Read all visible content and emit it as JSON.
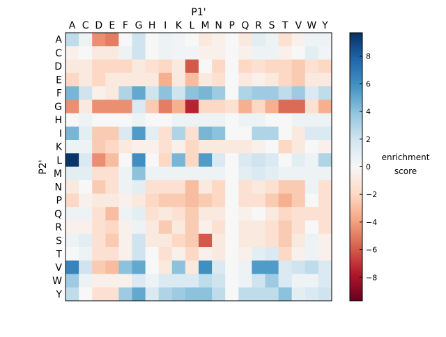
{
  "chart_data": {
    "type": "heatmap",
    "xlabel": "P1'",
    "ylabel": "P2'",
    "x_categories": [
      "A",
      "C",
      "D",
      "E",
      "F",
      "G",
      "H",
      "I",
      "K",
      "L",
      "M",
      "N",
      "P",
      "Q",
      "R",
      "S",
      "T",
      "V",
      "W",
      "Y"
    ],
    "y_categories": [
      "A",
      "C",
      "D",
      "E",
      "F",
      "G",
      "H",
      "I",
      "K",
      "L",
      "M",
      "N",
      "P",
      "Q",
      "R",
      "S",
      "T",
      "V",
      "W",
      "Y"
    ],
    "colorbar": {
      "label_line1": "enrichment",
      "label_line2": "score",
      "min": -9.7,
      "max": 9.7,
      "ticks": [
        8,
        6,
        4,
        2,
        0,
        -2,
        -4,
        -6,
        -8
      ],
      "tick_labels": [
        "8",
        "6",
        "4",
        "2",
        "0",
        "−2",
        "−4",
        "−6",
        "−8"
      ],
      "colormap": "RdBu"
    },
    "values": [
      [
        2.5,
        0.5,
        -4.5,
        -5,
        0,
        2,
        0,
        0.5,
        0.3,
        0,
        -1,
        -0.5,
        0,
        -1,
        1,
        0.5,
        -1.5,
        -0.5,
        0.5,
        0.5
      ],
      [
        -0.5,
        0,
        -1,
        -1,
        0.5,
        2,
        0,
        0.5,
        0.3,
        0.3,
        -0.5,
        -0.5,
        0,
        -0.5,
        0.5,
        0.5,
        -0.5,
        0,
        1,
        0.3
      ],
      [
        -1,
        -1,
        -2,
        -2,
        -2,
        -1,
        -1.5,
        -2,
        -1,
        -6,
        0,
        -2,
        0,
        -2,
        -1.5,
        -2,
        -2,
        -2.5,
        -1.5,
        -2
      ],
      [
        -2,
        -1,
        -2,
        -1,
        -1,
        -1,
        -1,
        -3.5,
        -1,
        -3,
        -1,
        -1.5,
        0,
        -1,
        -0.5,
        -1,
        -2,
        -2.5,
        -1,
        -1
      ],
      [
        4.5,
        2,
        -0.5,
        -1,
        3,
        5,
        2,
        4,
        2,
        4,
        4.5,
        3.5,
        0,
        3,
        3.5,
        3.5,
        2.5,
        3.5,
        1.5,
        2.5
      ],
      [
        -4.5,
        -1,
        -4.5,
        -4.5,
        -4.5,
        1.5,
        -2.5,
        -5,
        -3.5,
        -7.5,
        -2,
        -2,
        -1.5,
        -3.5,
        -2,
        -3.5,
        -5.5,
        -5.5,
        -1.5,
        -3.5
      ],
      [
        0,
        0.5,
        0,
        0,
        0,
        0.5,
        0,
        0,
        0.5,
        0.5,
        0.5,
        0.5,
        0,
        0.5,
        0.5,
        0,
        0,
        0.5,
        0.5,
        0.5
      ],
      [
        4.5,
        1,
        -2.5,
        -2.5,
        1.5,
        5.5,
        1,
        -1.5,
        3,
        -1.5,
        4.5,
        4,
        0,
        0,
        3,
        3,
        0,
        -1,
        1.5,
        1.5
      ],
      [
        0.5,
        0.5,
        -2.5,
        -2,
        -1,
        -0.5,
        -0.5,
        -1.5,
        -0.5,
        -2,
        -1,
        -1,
        -1,
        -1,
        -0.5,
        0,
        -2,
        -1,
        0,
        -0.5
      ],
      [
        9.5,
        1.5,
        -4.5,
        -3,
        0,
        6,
        0,
        -2,
        4.5,
        -2,
        5.5,
        1.5,
        0,
        1.5,
        2,
        1.5,
        0,
        1,
        0.5,
        3
      ],
      [
        1,
        1,
        -1.5,
        -1.5,
        0.5,
        4,
        0.5,
        0.5,
        0.5,
        0.5,
        0.5,
        0.5,
        0,
        1,
        1.5,
        1,
        0.5,
        0.5,
        0.5,
        0.5
      ],
      [
        -1,
        0,
        -2.5,
        -1.5,
        0.5,
        1,
        -1.5,
        -1.5,
        -1.5,
        -3,
        -1,
        -2,
        0,
        -1.5,
        -1,
        -1.5,
        -2.5,
        -2.5,
        0.5,
        -1.5
      ],
      [
        -2,
        -0.5,
        -1,
        -1,
        -0.5,
        -1,
        -2,
        -2.5,
        -2.5,
        -3,
        -2.5,
        -2,
        0,
        -1.5,
        -1.5,
        -2.5,
        -3.5,
        -2.5,
        0,
        -1.5
      ],
      [
        0.5,
        0.5,
        -1.5,
        -3,
        0.5,
        1,
        -1.5,
        -1,
        -1.5,
        -2.5,
        -1,
        -1,
        0,
        -0.5,
        0,
        -1,
        -2,
        -1.5,
        -1.5,
        -1.5
      ],
      [
        -0.5,
        -0.5,
        -1.5,
        -2,
        -0.5,
        0.5,
        -1,
        -2.5,
        -1,
        -2.5,
        -0.5,
        -1.5,
        0,
        -1,
        -1,
        -1.5,
        -2.5,
        -1.5,
        0,
        -1.5
      ],
      [
        0.5,
        1,
        -1.5,
        -2.5,
        -0.5,
        2,
        -1,
        -1,
        -2,
        -2.5,
        -6,
        -1,
        0,
        -1,
        -1,
        -1.5,
        -2.5,
        -1,
        0.5,
        -0.5
      ],
      [
        0,
        0.5,
        -1.5,
        -1.5,
        -0.5,
        2,
        0,
        -1.5,
        -0.5,
        -2,
        -0.5,
        -1,
        0,
        -0.5,
        1,
        1.5,
        -2,
        -0.5,
        0.5,
        -0.5
      ],
      [
        6.5,
        2,
        -2.5,
        -3,
        4,
        5,
        0,
        -1,
        4,
        -1,
        6,
        1.5,
        0,
        0.5,
        5.5,
        5.5,
        1.5,
        2,
        2.5,
        1.5
      ],
      [
        3.5,
        0.5,
        -0.5,
        -0.5,
        -0.5,
        1.5,
        0.5,
        1.5,
        1.5,
        1.5,
        2.5,
        2,
        0,
        0.5,
        2,
        3.5,
        1.5,
        0.5,
        0.5,
        1.5
      ],
      [
        2.5,
        0,
        -1.5,
        -1.5,
        3.5,
        5,
        1.5,
        3,
        3.5,
        4,
        4,
        2.5,
        0,
        2.5,
        2.5,
        2.5,
        4,
        1,
        1.5,
        2
      ]
    ]
  }
}
